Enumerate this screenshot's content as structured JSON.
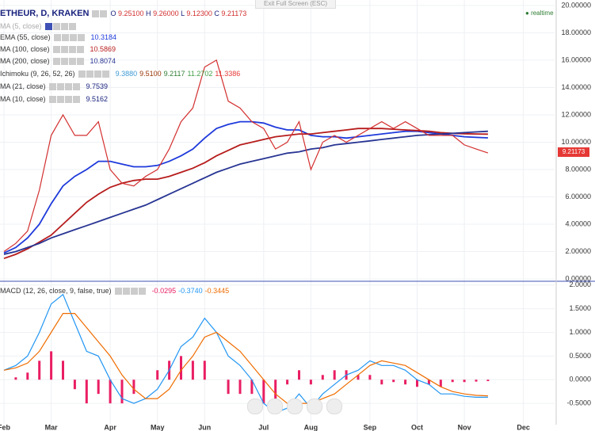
{
  "header": {
    "symbol": "ETHEUR, D, KRAKEN",
    "ohlc": [
      {
        "key": "O",
        "value": "9.25100"
      },
      {
        "key": "H",
        "value": "9.26000"
      },
      {
        "key": "L",
        "value": "9.12300"
      },
      {
        "key": "C",
        "value": "9.21173"
      }
    ],
    "realtime": "realtime",
    "exit": "Exit Full Screen (ESC)"
  },
  "indicators": [
    {
      "name": "MA (5, close)"
    },
    {
      "name": "Ichimoku (9, 26, 52, 26)",
      "values": [
        {
          "text": "9.3880",
          "color": "#3f9ad6"
        },
        {
          "text": "9.5100",
          "color": "#993404"
        },
        {
          "text": "9.2117",
          "color": "#2e7d32"
        },
        {
          "text": "11.2702",
          "color": "#43a047"
        },
        {
          "text": "11.3386",
          "color": "#e53935"
        }
      ]
    },
    {
      "name": "MA (21, close)",
      "last": "9.7539"
    },
    {
      "name": "MA (10, close)",
      "last": "9.5162"
    },
    {
      "name": "MACD (12, 26, close, 9, false, true)",
      "values": [
        {
          "text": "-0.0295",
          "color": "#e91e63"
        },
        {
          "text": "-0.3740",
          "color": "#2196f3"
        },
        {
          "text": "-0.3445",
          "color": "#ef6c00"
        }
      ]
    }
  ],
  "chart_data": [
    {
      "type": "line",
      "color": "#d32f2f",
      "categories": [
        "Feb",
        null,
        null,
        null,
        "Mar",
        null,
        null,
        null,
        null,
        "Apr",
        null,
        null,
        null,
        "May",
        null,
        null,
        null,
        "Jun",
        null,
        null,
        null,
        null,
        "Jul",
        null,
        null,
        null,
        "Aug",
        null,
        null,
        null,
        null,
        "Sep",
        null,
        null,
        null,
        "Oct",
        null,
        null,
        null,
        "Nov",
        null,
        null,
        null,
        null,
        "Dec"
      ],
      "values": [
        2.0,
        2.6,
        3.5,
        6.5,
        10.5,
        12.0,
        10.5,
        10.5,
        11.5,
        8.0,
        7.0,
        6.8,
        7.5,
        8.0,
        9.5,
        11.5,
        12.5,
        15.5,
        16.0,
        13.0,
        12.5,
        11.5,
        11.0,
        9.5,
        10.0,
        11.5,
        8.0,
        10.0,
        10.5,
        10.0,
        10.5,
        11.0,
        11.5,
        11.0,
        11.5,
        11.0,
        10.5,
        10.5,
        10.5,
        9.8,
        9.5,
        9.21,
        null,
        null,
        null
      ],
      "series": [
        {
          "name": "EMA (55, close)",
          "last": "10.3184",
          "color": "#1e3adb",
          "values": [
            1.9,
            2.3,
            3.0,
            4.0,
            5.5,
            6.8,
            7.5,
            8.0,
            8.6,
            8.6,
            8.4,
            8.2,
            8.2,
            8.3,
            8.6,
            9.0,
            9.5,
            10.3,
            11.0,
            11.3,
            11.5,
            11.5,
            11.4,
            11.1,
            10.9,
            10.9,
            10.5,
            10.4,
            10.4,
            10.3,
            10.4,
            10.5,
            10.6,
            10.7,
            10.8,
            10.8,
            10.7,
            10.6,
            10.5,
            10.4,
            10.35,
            10.32,
            null,
            null,
            null
          ]
        },
        {
          "name": "MA (100, close)",
          "last": "10.5869",
          "color": "#b71c1c",
          "values": [
            1.5,
            1.8,
            2.2,
            2.7,
            3.2,
            4.0,
            4.8,
            5.6,
            6.2,
            6.7,
            7.0,
            7.2,
            7.3,
            7.3,
            7.5,
            7.8,
            8.1,
            8.5,
            9.0,
            9.4,
            9.8,
            10.0,
            10.2,
            10.4,
            10.5,
            10.6,
            10.6,
            10.7,
            10.8,
            10.9,
            11.0,
            11.0,
            11.0,
            10.95,
            10.9,
            10.85,
            10.8,
            10.7,
            10.65,
            10.62,
            10.6,
            10.59,
            null,
            null,
            null
          ]
        },
        {
          "name": "MA (200, close)",
          "last": "10.8074",
          "color": "#283593",
          "values": [
            1.8,
            2.0,
            2.3,
            2.6,
            3.0,
            3.3,
            3.6,
            3.9,
            4.2,
            4.5,
            4.8,
            5.1,
            5.4,
            5.8,
            6.2,
            6.6,
            7.0,
            7.4,
            7.8,
            8.1,
            8.4,
            8.6,
            8.8,
            9.0,
            9.2,
            9.3,
            9.5,
            9.6,
            9.8,
            9.9,
            10.0,
            10.1,
            10.2,
            10.3,
            10.4,
            10.5,
            10.55,
            10.6,
            10.65,
            10.7,
            10.75,
            10.8,
            null,
            null,
            null
          ]
        }
      ],
      "ylim": [
        -0.17,
        20.4
      ],
      "yticks": [
        {
          "value": 0,
          "label": "0.00000"
        },
        {
          "value": 2,
          "label": "2.00000"
        },
        {
          "value": 4,
          "label": "4.00000"
        },
        {
          "value": 6,
          "label": "6.00000"
        },
        {
          "value": 8,
          "label": "8.00000"
        },
        {
          "value": 10,
          "label": "10.00000"
        },
        {
          "value": 12,
          "label": "12.00000"
        },
        {
          "value": 14,
          "label": "14.00000"
        },
        {
          "value": 16,
          "label": "16.00000"
        },
        {
          "value": 18,
          "label": "18.00000"
        },
        {
          "value": 20,
          "label": "20.00000"
        }
      ],
      "grid": true
    },
    {
      "type": "macd",
      "categories": [
        "Feb",
        null,
        null,
        null,
        "Mar",
        null,
        null,
        null,
        null,
        "Apr",
        null,
        null,
        null,
        "May",
        null,
        null,
        null,
        "Jun",
        null,
        null,
        null,
        null,
        "Jul",
        null,
        null,
        null,
        "Aug",
        null,
        null,
        null,
        null,
        "Sep",
        null,
        null,
        null,
        "Oct",
        null,
        null,
        null,
        "Nov",
        null,
        null,
        null,
        null,
        "Dec"
      ],
      "histogram": {
        "color": "#e91e63",
        "values": [
          0,
          0.05,
          0.15,
          0.4,
          0.6,
          0.4,
          -0.2,
          -0.5,
          -0.3,
          -0.5,
          -0.5,
          -0.3,
          0,
          0.2,
          0.4,
          0.5,
          0.4,
          0.4,
          0,
          -0.3,
          -0.3,
          -0.3,
          -0.5,
          -0.4,
          -0.1,
          0.2,
          -0.1,
          0.1,
          0.2,
          0.2,
          0.1,
          0.1,
          -0.1,
          -0.05,
          -0.1,
          -0.15,
          -0.1,
          -0.15,
          -0.05,
          -0.05,
          -0.04,
          -0.03,
          null,
          null,
          null
        ]
      },
      "series": [
        {
          "name": "MACD",
          "color": "#2196f3",
          "values": [
            0.2,
            0.3,
            0.5,
            1.0,
            1.6,
            1.8,
            1.2,
            0.6,
            0.5,
            0.0,
            -0.4,
            -0.5,
            -0.4,
            -0.2,
            0.2,
            0.7,
            0.9,
            1.3,
            1.0,
            0.5,
            0.3,
            0.0,
            -0.5,
            -0.7,
            -0.6,
            -0.3,
            -0.6,
            -0.3,
            -0.1,
            0.1,
            0.2,
            0.4,
            0.3,
            0.3,
            0.2,
            0.0,
            -0.1,
            -0.3,
            -0.3,
            -0.35,
            -0.37,
            -0.37,
            null,
            null,
            null
          ]
        },
        {
          "name": "Signal",
          "color": "#ef6c00",
          "values": [
            0.2,
            0.25,
            0.35,
            0.6,
            1.0,
            1.4,
            1.4,
            1.1,
            0.8,
            0.5,
            0.1,
            -0.2,
            -0.4,
            -0.4,
            -0.2,
            0.2,
            0.5,
            0.9,
            1.0,
            0.8,
            0.6,
            0.3,
            0.0,
            -0.3,
            -0.5,
            -0.5,
            -0.5,
            -0.4,
            -0.3,
            -0.1,
            0.1,
            0.3,
            0.4,
            0.35,
            0.3,
            0.15,
            0.0,
            -0.15,
            -0.25,
            -0.3,
            -0.33,
            -0.34,
            null,
            null,
            null
          ]
        }
      ],
      "ylim": [
        -0.95,
        2.08
      ],
      "yticks": [
        {
          "value": -0.5,
          "label": "-0.5000"
        },
        {
          "value": 0,
          "label": "0.0000"
        },
        {
          "value": 0.5,
          "label": "0.5000"
        },
        {
          "value": 1,
          "label": "1.0000"
        },
        {
          "value": 1.5,
          "label": "1.5000"
        },
        {
          "value": 2,
          "label": "2.0000"
        }
      ],
      "grid": true
    }
  ]
}
